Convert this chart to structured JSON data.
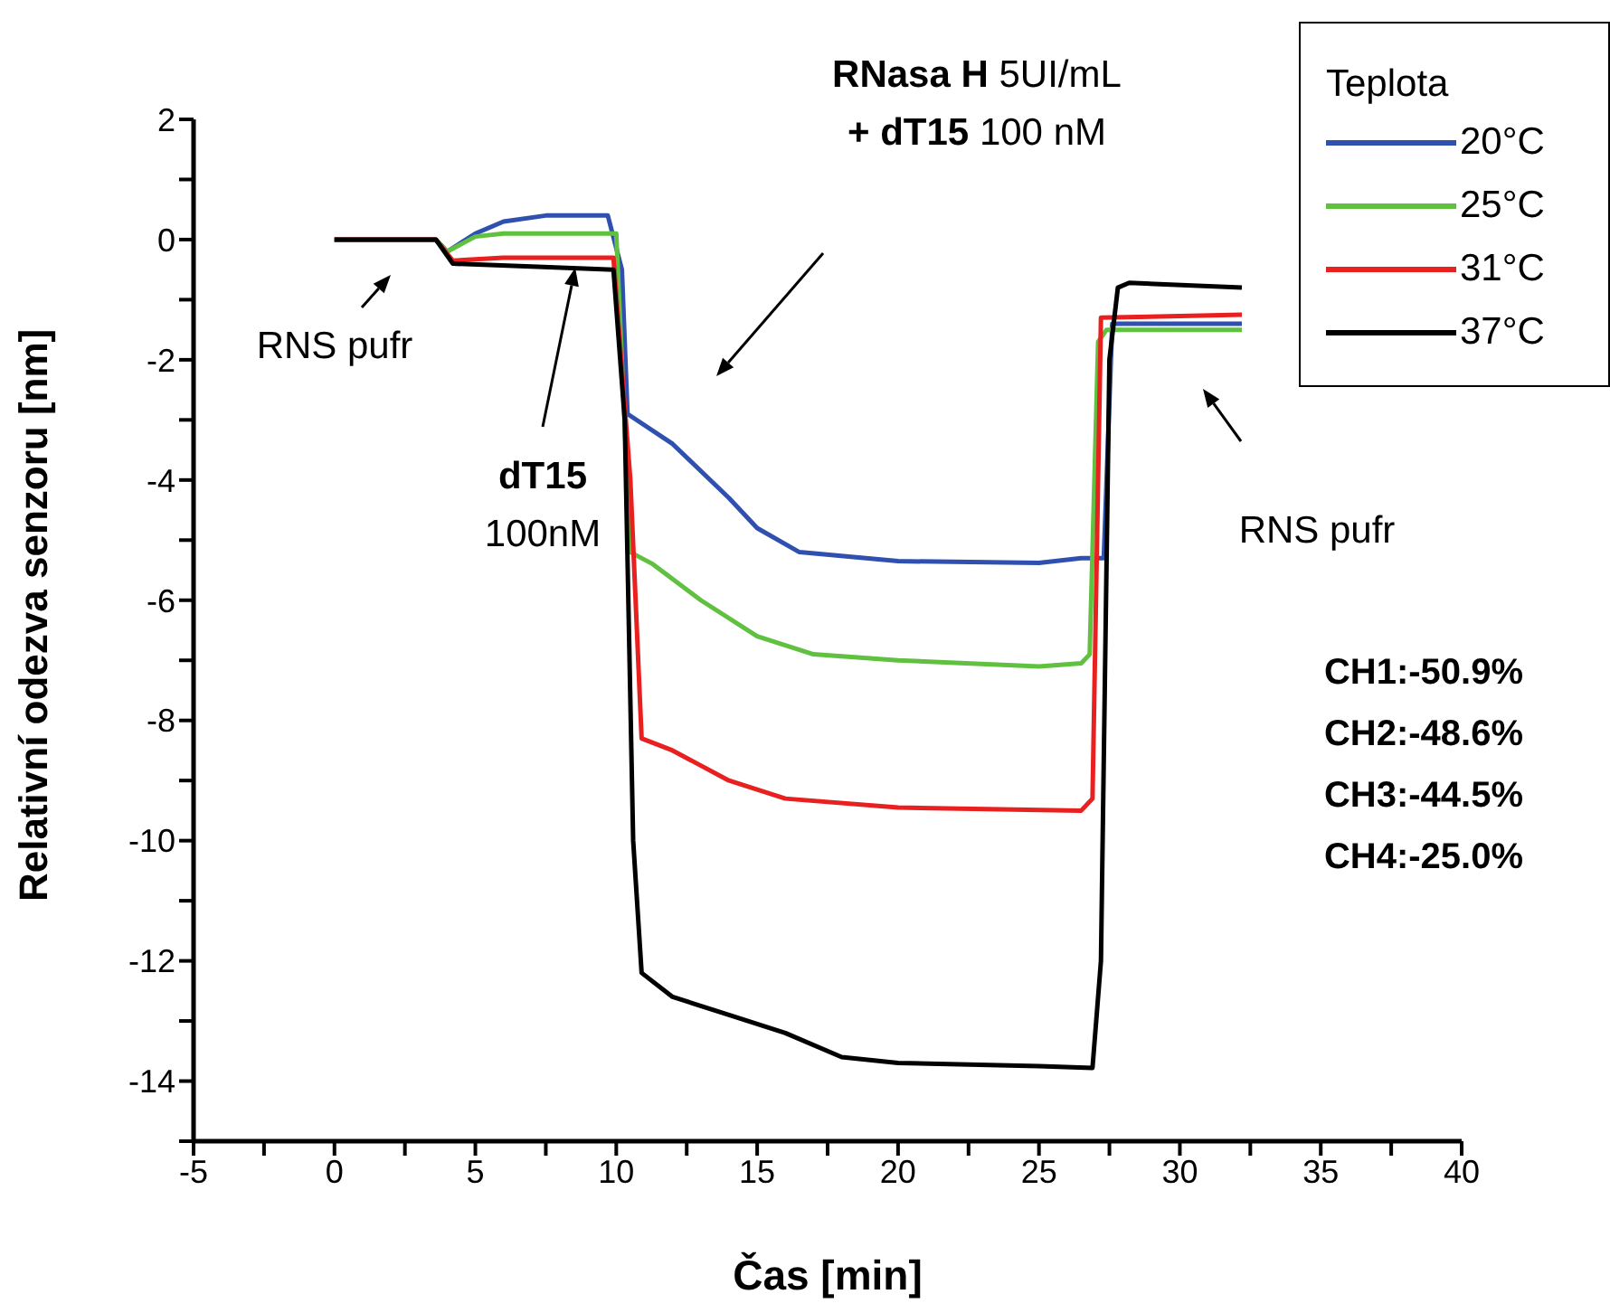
{
  "chart_data": {
    "type": "line",
    "xlabel": "Čas [min]",
    "ylabel": "Relativní odezva senzoru [nm]",
    "legend_title": "Teplota",
    "legend": "top right",
    "marker": "none",
    "line_style": "solid",
    "xlim": [
      -5,
      40
    ],
    "xticks": [
      -5,
      {
        "value": -2.5,
        "label": null
      },
      0,
      {
        "value": 2.5,
        "label": null
      },
      5,
      {
        "value": 7.5,
        "label": null
      },
      10,
      {
        "value": 12.5,
        "label": null
      },
      15,
      {
        "value": 17.5,
        "label": null
      },
      20,
      {
        "value": 22.5,
        "label": null
      },
      25,
      {
        "value": 27.5,
        "label": null
      },
      30,
      {
        "value": 32.5,
        "label": null
      },
      35,
      {
        "value": 37.5,
        "label": null
      },
      40
    ],
    "ylim": [
      -15,
      2
    ],
    "yticks": [
      {
        "value": -15,
        "label": null
      },
      -14,
      {
        "value": -13,
        "label": null
      },
      -12,
      {
        "value": -11,
        "label": null
      },
      -10,
      {
        "value": -9,
        "label": null
      },
      -8,
      {
        "value": -7,
        "label": null
      },
      -6,
      {
        "value": -5,
        "label": null
      },
      -4,
      {
        "value": -3,
        "label": null
      },
      -2,
      {
        "value": -1,
        "label": null
      },
      0,
      {
        "value": 1,
        "label": null
      },
      2
    ],
    "series": [
      {
        "name": "20°C",
        "color": "#3050b0",
        "x": [
          0,
          3.6,
          4.0,
          5,
          6,
          7.5,
          9.7,
          10.2,
          10.4,
          12,
          14,
          15,
          16.5,
          20,
          25,
          26.5,
          27.3,
          27.6,
          32.2
        ],
        "values": [
          0,
          0,
          -0.2,
          0.1,
          0.3,
          0.4,
          0.4,
          -0.5,
          -2.9,
          -3.4,
          -4.3,
          -4.8,
          -5.2,
          -5.35,
          -5.38,
          -5.3,
          -5.3,
          -1.4,
          -1.4
        ]
      },
      {
        "name": "25°C",
        "color": "#60c040",
        "x": [
          0,
          3.6,
          4.0,
          5,
          6,
          10.0,
          10.5,
          11.3,
          13,
          15,
          17,
          20,
          25,
          26.5,
          26.8,
          27.1,
          27.4,
          32.2
        ],
        "values": [
          0,
          0,
          -0.2,
          0.05,
          0.1,
          0.1,
          -5.2,
          -5.4,
          -6.0,
          -6.6,
          -6.9,
          -7.0,
          -7.1,
          -7.05,
          -6.9,
          -1.7,
          -1.5,
          -1.5
        ]
      },
      {
        "name": "31°C",
        "color": "#e82020",
        "x": [
          0,
          3.6,
          4.2,
          6,
          9.9,
          10.5,
          10.9,
          12,
          14,
          16,
          20,
          26.5,
          26.9,
          27.2,
          32.2
        ],
        "values": [
          0,
          0,
          -0.35,
          -0.3,
          -0.3,
          -4,
          -8.3,
          -8.5,
          -9.0,
          -9.3,
          -9.45,
          -9.5,
          -9.3,
          -1.3,
          -1.25
        ]
      },
      {
        "name": "37°C",
        "color": "#000000",
        "x": [
          0,
          3.6,
          4.2,
          7,
          9.9,
          10.3,
          10.6,
          10.9,
          12,
          14,
          16,
          18,
          20,
          25,
          26.9,
          27.2,
          27.5,
          27.8,
          28.2,
          32.2
        ],
        "values": [
          0,
          0,
          -0.4,
          -0.45,
          -0.5,
          -3,
          -10,
          -12.2,
          -12.6,
          -12.9,
          -13.2,
          -13.6,
          -13.7,
          -13.75,
          -13.78,
          -12,
          -2,
          -0.8,
          -0.72,
          -0.8
        ]
      }
    ],
    "annotations": [
      "RNS pufr",
      "dT15 100nM",
      "RNasa H 5UI/mL + dT15 100 nM",
      "RNS pufr",
      "CH1:-50.9%",
      "CH2:-48.6%",
      "CH3:-44.5%",
      "CH4:-25.0%"
    ]
  }
}
